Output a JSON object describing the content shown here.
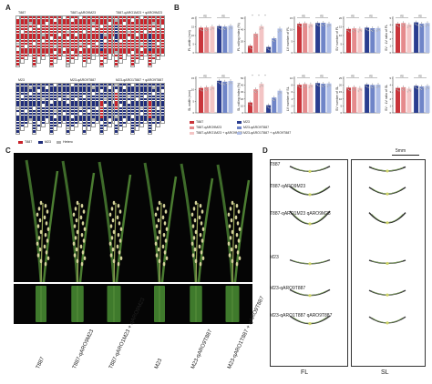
{
  "panels": {
    "a": "A",
    "b": "B",
    "c": "C",
    "d": "D"
  },
  "genotype_legend": {
    "t887": "T887",
    "m23": "M23",
    "hetero": "Hetero"
  },
  "genotype_titles": {
    "t887": "T887",
    "t887_qaro9": "T887-qARO9M23",
    "t887_double": "T887-qARO1M23 + qARO9M23",
    "m23": "M23",
    "m23_qaro9": "M23-qARO9T887",
    "m23_double": "M23-qARO1T887 + qARO9T887"
  },
  "colors": {
    "t887": "#c8222a",
    "m23": "#1f2d7a",
    "hetero": "#b0b0b0",
    "bar_t887": "#c9353b",
    "bar_t887b": "#e58a8c",
    "bar_t887c": "#f3c4c4",
    "bar_m23": "#2a3d8f",
    "bar_m23b": "#6f85c8",
    "bar_m23c": "#aebde6"
  },
  "chart_data": [
    {
      "type": "bar",
      "ylabel": "FL width (mm)",
      "sig": [
        "ns",
        "ns"
      ],
      "values": [
        14.5,
        14.6,
        15.2,
        15.4,
        15.1,
        15.6
      ],
      "ylim": [
        0,
        20
      ],
      "ticks": [
        "0",
        "5",
        "10",
        "15",
        "20"
      ]
    },
    {
      "type": "bar",
      "ylabel": "FL rolling index (%)",
      "sig": [
        "*",
        "*",
        "*"
      ],
      "values": [
        12,
        33,
        46,
        10,
        25,
        42
      ],
      "ylim": [
        0,
        60
      ],
      "ticks": [
        "0",
        "20",
        "40",
        "60"
      ]
    },
    {
      "type": "bar",
      "ylabel": "LV number of FL",
      "sig": [
        "ns",
        "ns"
      ],
      "values": [
        12.6,
        12.8,
        12.5,
        12.9,
        13.0,
        12.7
      ],
      "ylim": [
        0,
        15
      ],
      "ticks": [
        "0",
        "5",
        "10",
        "15"
      ]
    },
    {
      "type": "bar",
      "ylabel": "SV number of FL",
      "sig": [
        "ns",
        "ns"
      ],
      "values": [
        13.8,
        14.1,
        14.0,
        14.5,
        14.2,
        14.3
      ],
      "ylim": [
        0,
        20
      ],
      "ticks": [
        "0",
        "5",
        "10",
        "15",
        "20"
      ]
    },
    {
      "type": "bar",
      "ylabel": "SV : LV ratio of FL",
      "sig": [
        "ns",
        "ns"
      ],
      "values": [
        4.2,
        4.3,
        4.1,
        4.4,
        4.2,
        4.3
      ],
      "ylim": [
        0,
        5
      ],
      "ticks": [
        "0",
        "1",
        "2",
        "3",
        "4",
        "5"
      ]
    },
    {
      "type": "bar",
      "ylabel": "SL width (mm)",
      "sig": [
        "ns",
        "ns"
      ],
      "values": [
        10.8,
        11.1,
        11.4,
        13.9,
        13.5,
        13.8
      ],
      "ylim": [
        0,
        15
      ],
      "ticks": [
        "0",
        "5",
        "10",
        "15"
      ]
    },
    {
      "type": "bar",
      "ylabel": "SL rolling index (%)",
      "sig": [
        "*",
        "*",
        "*"
      ],
      "values": [
        15,
        34,
        42,
        11,
        22,
        32
      ],
      "ylim": [
        0,
        50
      ],
      "ticks": [
        "0",
        "10",
        "20",
        "30",
        "40",
        "50"
      ]
    },
    {
      "type": "bar",
      "ylabel": "LV number of SL",
      "sig": [
        "ns",
        "ns"
      ],
      "values": [
        8.1,
        8.3,
        8.2,
        8.6,
        8.4,
        8.5
      ],
      "ylim": [
        0,
        10
      ],
      "ticks": [
        "0",
        "2",
        "4",
        "6",
        "8",
        "10"
      ]
    },
    {
      "type": "bar",
      "ylabel": "SV number of SL",
      "sig": [
        "ns",
        "ns"
      ],
      "values": [
        18.2,
        18.6,
        18.0,
        20.5,
        20.1,
        20.4
      ],
      "ylim": [
        0,
        25
      ],
      "ticks": [
        "0",
        "5",
        "10",
        "15",
        "20",
        "25"
      ]
    },
    {
      "type": "bar",
      "ylabel": "SV : LV ratio of SL",
      "sig": [
        "ns",
        "ns"
      ],
      "values": [
        3.6,
        3.7,
        3.5,
        3.9,
        3.8,
        3.9
      ],
      "ylim": [
        0,
        5
      ],
      "ticks": [
        "0",
        "1",
        "2",
        "3",
        "4",
        "5"
      ]
    }
  ],
  "bar_legend": [
    {
      "label": "T887",
      "color": "#c9353b"
    },
    {
      "label": "T887-qARO9M23",
      "color": "#e58a8c"
    },
    {
      "label": "T887-qARO1M23 + qARO9M23",
      "color": "#f3c4c4"
    },
    {
      "label": "M23",
      "color": "#2a3d8f"
    },
    {
      "label": "M23-qARO9T887",
      "color": "#6f85c8"
    },
    {
      "label": "M23-qARO1T887 + qARO9T887",
      "color": "#aebde6"
    }
  ],
  "panel_c_labels": [
    "T887",
    "T887-qARO9M23",
    "T887-qARO1M23 + qARO9M23",
    "M23",
    "M23-qARO9T887",
    "M23-qARO1T887 + qARO9T887"
  ],
  "panel_d": {
    "scale": "5mm",
    "rows": [
      "T887",
      "T887-qARO9M23",
      "T887-qARO1M23 qARO9M23",
      "M23",
      "M23-qARO9T887",
      "M23-qARO1T887 qARO9T887"
    ],
    "cols": [
      "FL",
      "SL"
    ]
  }
}
